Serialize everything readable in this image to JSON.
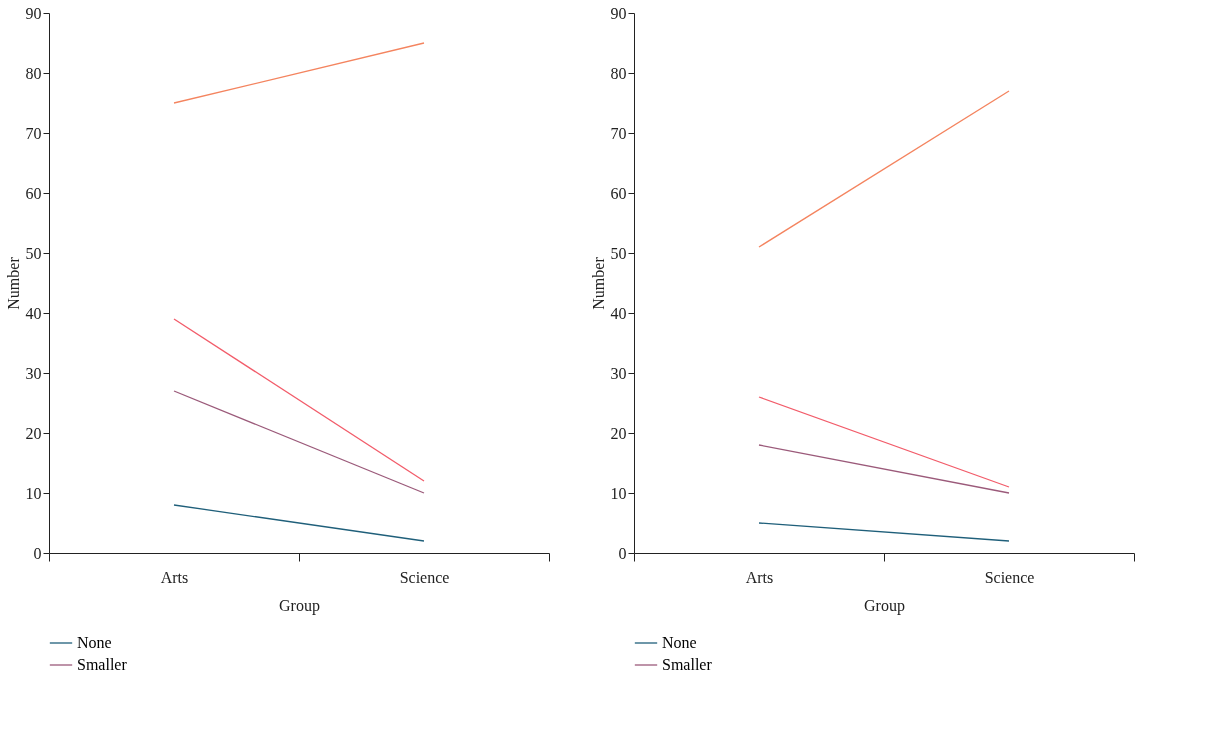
{
  "chart_data": [
    {
      "type": "line",
      "xlabel": "Group",
      "ylabel": "Number",
      "categories": [
        "Arts",
        "Science"
      ],
      "ylim": [
        0,
        90
      ],
      "yticks": [
        0,
        10,
        20,
        30,
        40,
        50,
        60,
        70,
        80,
        90
      ],
      "grid": false,
      "legend": "bottom",
      "marker": "none",
      "line_style": "solid",
      "series": [
        {
          "name": "None",
          "color": "#1f5f7a",
          "values": [
            8,
            2
          ]
        },
        {
          "name": "Smaller",
          "color": "#9b5a7a",
          "values": [
            27,
            10
          ]
        },
        {
          "color": "#f25c6a",
          "values": [
            39,
            12
          ]
        },
        {
          "color": "#f4845f",
          "values": [
            75,
            85
          ]
        }
      ]
    },
    {
      "type": "line",
      "xlabel": "Group",
      "ylabel": "Number",
      "categories": [
        "Arts",
        "Science"
      ],
      "ylim": [
        0,
        90
      ],
      "yticks": [
        0,
        10,
        20,
        30,
        40,
        50,
        60,
        70,
        80,
        90
      ],
      "grid": false,
      "legend": "bottom",
      "marker": "none",
      "line_style": "solid",
      "series": [
        {
          "name": "None",
          "color": "#1f5f7a",
          "values": [
            5,
            2
          ]
        },
        {
          "name": "Smaller",
          "color": "#9b5a7a",
          "values": [
            18,
            10
          ]
        },
        {
          "color": "#f25c6a",
          "values": [
            26,
            11
          ]
        },
        {
          "color": "#f4845f",
          "values": [
            51,
            77
          ]
        }
      ]
    }
  ]
}
